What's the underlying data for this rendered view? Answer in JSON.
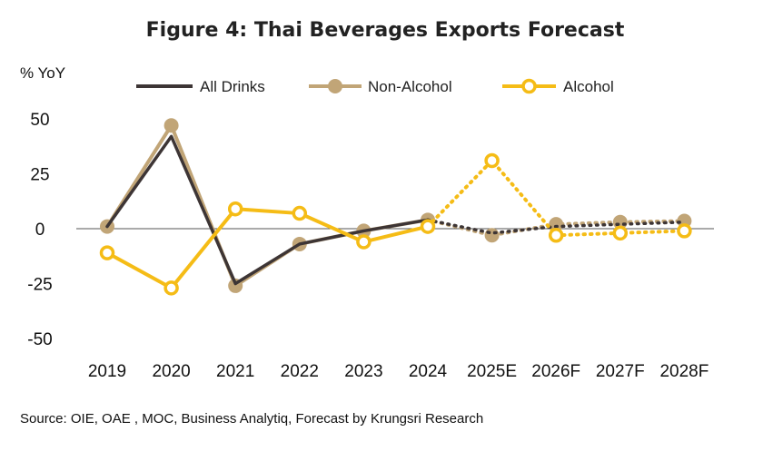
{
  "chart_data": {
    "type": "line",
    "title": "Figure 4: Thai Beverages Exports Forecast",
    "ylabel": "% YoY",
    "xlabel": "",
    "ylim": [
      -50,
      50
    ],
    "yticks": [
      50,
      25,
      0,
      -25,
      -50
    ],
    "categories": [
      "2019",
      "2020",
      "2021",
      "2022",
      "2023",
      "2024",
      "2025E",
      "2026F",
      "2027F",
      "2028F"
    ],
    "actual_through": "2024",
    "legend_position": "top",
    "grid": false,
    "series": [
      {
        "name": "All Drinks",
        "color": "#3d3535",
        "marker": "none",
        "values": [
          1,
          42,
          -25,
          -7,
          -1,
          4,
          -2,
          1,
          2,
          3
        ]
      },
      {
        "name": "Non-Alcohol",
        "color": "#c1a577",
        "marker": "filled-circle",
        "values": [
          1,
          47,
          -26,
          -7,
          -1,
          4,
          -3,
          2,
          3,
          3.5
        ]
      },
      {
        "name": "Alcohol",
        "color": "#f5bc16",
        "marker": "open-circle",
        "values": [
          -11,
          -27,
          9,
          7,
          -6,
          1,
          31,
          -3,
          -2,
          -1
        ]
      }
    ],
    "source": "Source: OIE, OAE , MOC, Business Analytiq, Forecast by Krungsri Research"
  }
}
